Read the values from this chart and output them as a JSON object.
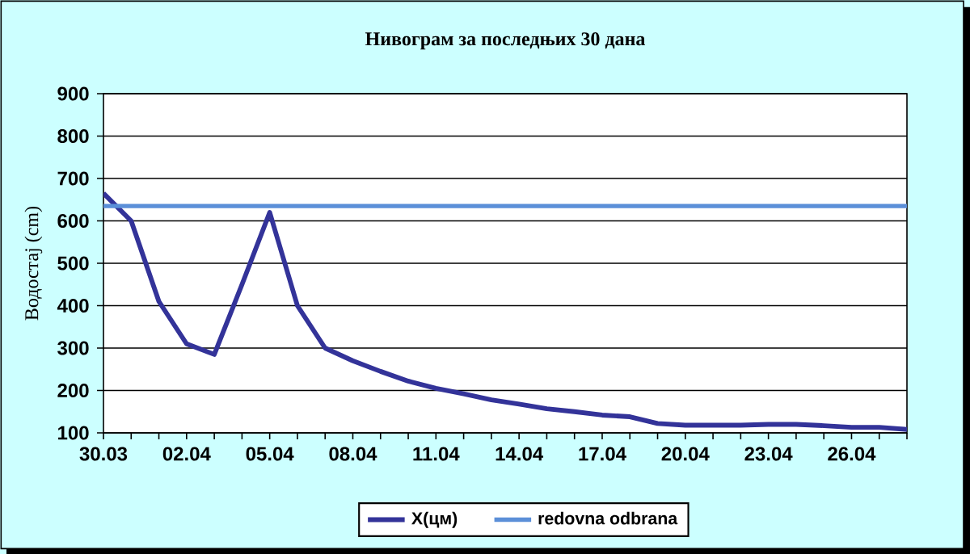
{
  "chart_data": {
    "type": "line",
    "title": "Нивограм за последњих 30 дана",
    "ylabel": "Водостај (cm)",
    "categories": [
      "30.03",
      null,
      null,
      "02.04",
      null,
      null,
      "05.04",
      null,
      null,
      "08.04",
      null,
      null,
      "11.04",
      null,
      null,
      "14.04",
      null,
      null,
      "17.04",
      null,
      null,
      "20.04",
      null,
      null,
      "23.04",
      null,
      null,
      "26.04",
      null,
      null
    ],
    "series": [
      {
        "name": "X(цм)",
        "color": "#333399",
        "values": [
          665,
          600,
          410,
          310,
          285,
          450,
          620,
          400,
          300,
          270,
          245,
          222,
          205,
          192,
          178,
          168,
          157,
          150,
          142,
          138,
          122,
          118,
          118,
          118,
          120,
          120,
          117,
          113,
          113,
          108
        ]
      }
    ],
    "ref_lines": [
      {
        "axis": "y",
        "value": 635,
        "label": "redovna odbrana",
        "color": "#5b8fd8"
      }
    ],
    "ylim": [
      100,
      900
    ],
    "yticks": [
      100,
      200,
      300,
      400,
      500,
      600,
      700,
      800,
      900
    ],
    "grid": "y",
    "legend": "bottom",
    "marker": "none",
    "line_style": "solid"
  }
}
